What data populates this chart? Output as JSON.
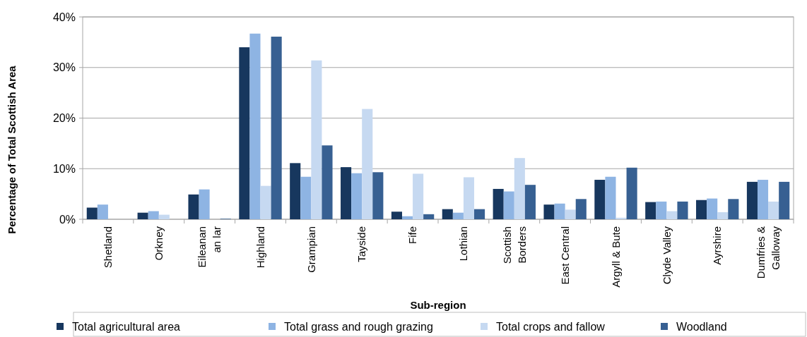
{
  "chart_data": {
    "type": "bar",
    "xlabel": "Sub-region",
    "ylabel": "Percentage of Total Scottish Area",
    "categories": [
      "Shetland",
      "Orkney",
      "Eileanan an lar",
      "Highland",
      "Grampian",
      "Tayside",
      "Fife",
      "Lothian",
      "Scottish Borders",
      "East Central",
      "Argyll & Bute",
      "Clyde Valley",
      "Ayrshire",
      "Dumfries & Galloway"
    ],
    "series": [
      {
        "name": "Total agricultural area",
        "color": "#17375e",
        "values": [
          2.3,
          1.3,
          4.9,
          34.0,
          11.1,
          10.3,
          1.5,
          2.0,
          6.0,
          2.9,
          7.8,
          3.4,
          3.8,
          7.4
        ]
      },
      {
        "name": "Total grass and rough grazing",
        "color": "#8eb4e3",
        "values": [
          2.9,
          1.6,
          5.9,
          36.7,
          8.4,
          9.1,
          0.6,
          1.3,
          5.5,
          3.1,
          8.4,
          3.5,
          4.1,
          7.8
        ]
      },
      {
        "name": "Total crops and fallow",
        "color": "#c6d9f1",
        "values": [
          0,
          0.9,
          0,
          6.6,
          31.4,
          21.8,
          9.0,
          8.3,
          12.1,
          1.9,
          0.3,
          1.6,
          1.4,
          3.5
        ]
      },
      {
        "name": "Woodland",
        "color": "#376092",
        "values": [
          0,
          0,
          0.1,
          36.1,
          14.6,
          9.3,
          1.0,
          2.0,
          6.8,
          4.0,
          10.2,
          3.5,
          4.0,
          7.4
        ]
      }
    ],
    "ylim": [
      0,
      40
    ],
    "yticks": [
      {
        "value": 0,
        "label": "0%"
      },
      {
        "value": 10,
        "label": "10%"
      },
      {
        "value": 20,
        "label": "20%"
      },
      {
        "value": 30,
        "label": "30%"
      },
      {
        "value": 40,
        "label": "40%"
      }
    ],
    "grid": "y",
    "legend": "bottom"
  }
}
